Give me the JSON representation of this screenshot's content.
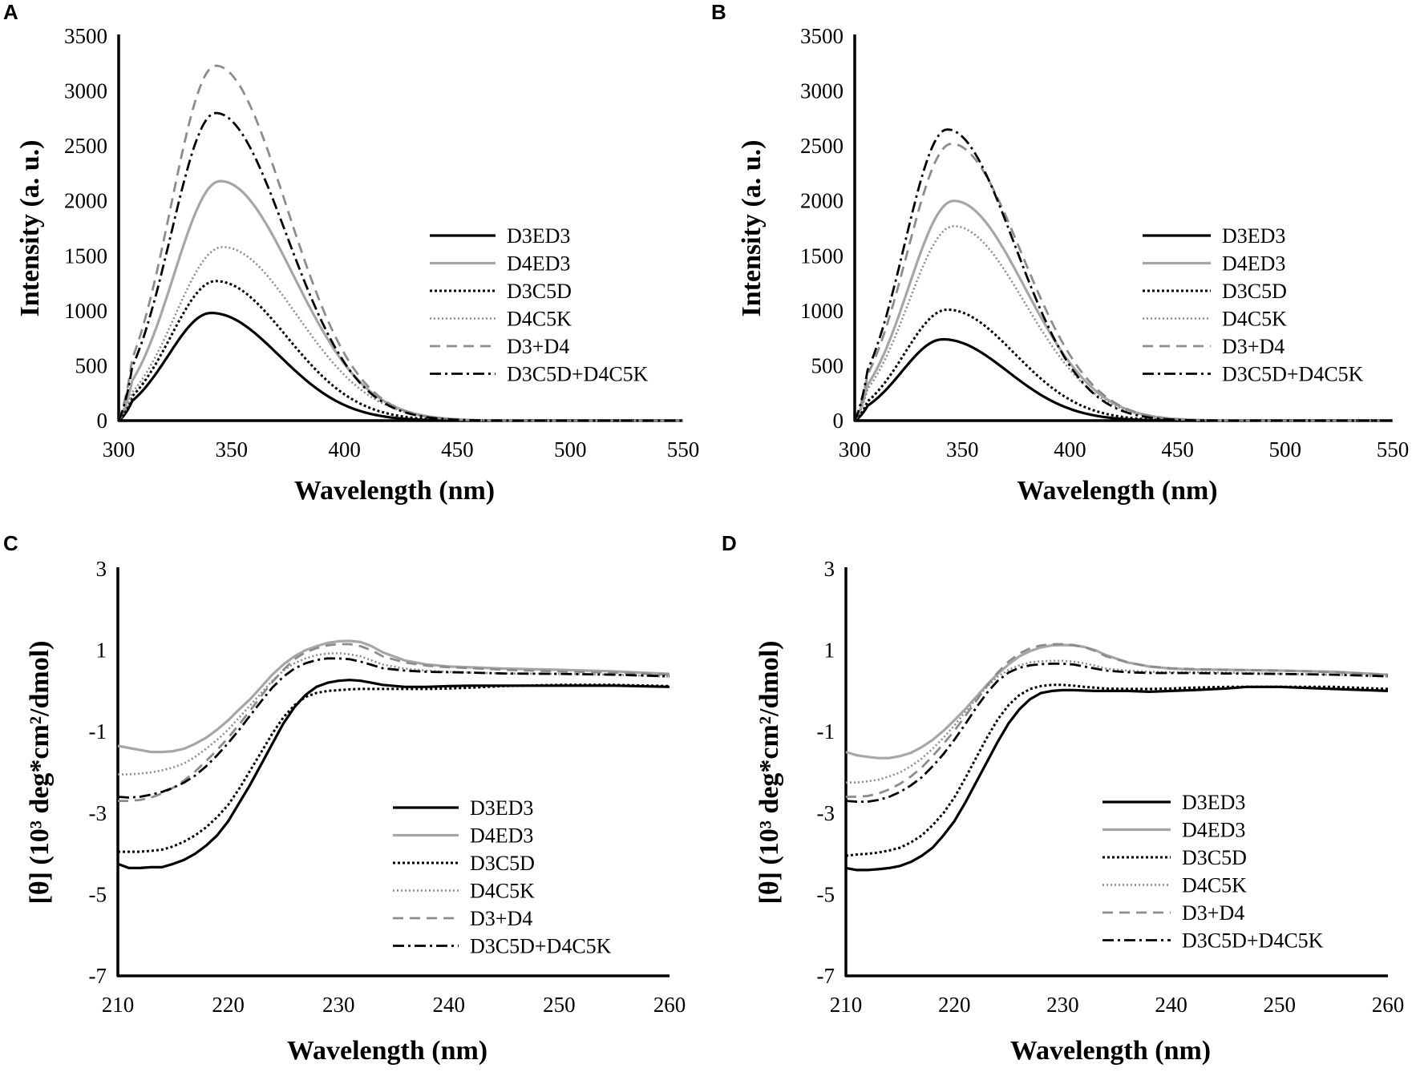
{
  "styles": {
    "D3ED3": {
      "color": "#000000",
      "dash": "",
      "width": 3.2
    },
    "D4ED3": {
      "color": "#a6a6a6",
      "dash": "",
      "width": 3.2
    },
    "D3C5D": {
      "color": "#000000",
      "dash": "3 3",
      "width": 3
    },
    "D4C5K": {
      "color": "#8c8c8c",
      "dash": "2 3",
      "width": 2.6
    },
    "D3+D4": {
      "color": "#8c8c8c",
      "dash": "13 8",
      "width": 2.8
    },
    "D3C5D+D4C5K": {
      "color": "#000000",
      "dash": "14 5 3 5",
      "width": 2.8
    }
  },
  "chart_data": [
    {
      "panel": "A",
      "type": "line",
      "kind": "fluor",
      "xlabel": "Wavelength (nm)",
      "ylabel": "Intensity (a. u.)",
      "xlim": [
        300,
        550
      ],
      "ylim": [
        0,
        3500
      ],
      "xticks": [
        300,
        350,
        400,
        450,
        500,
        550
      ],
      "yticks": [
        0,
        500,
        1000,
        1500,
        2000,
        2500,
        3000,
        3500
      ],
      "series": [
        {
          "name": "D3ED3",
          "peak_nm": 341,
          "peak_intensity": 980
        },
        {
          "name": "D4ED3",
          "peak_nm": 345,
          "peak_intensity": 2180
        },
        {
          "name": "D3C5D",
          "peak_nm": 343,
          "peak_intensity": 1270
        },
        {
          "name": "D4C5K",
          "peak_nm": 346,
          "peak_intensity": 1580
        },
        {
          "name": "D3+D4",
          "peak_nm": 343,
          "peak_intensity": 3230
        },
        {
          "name": "D3C5D+D4C5K",
          "peak_nm": 343,
          "peak_intensity": 2800
        }
      ]
    },
    {
      "panel": "B",
      "type": "line",
      "kind": "fluor",
      "xlabel": "Wavelength (nm)",
      "ylabel": "Intensity (a. u.)",
      "xlim": [
        300,
        550
      ],
      "ylim": [
        0,
        3500
      ],
      "xticks": [
        300,
        350,
        400,
        450,
        500,
        550
      ],
      "yticks": [
        0,
        500,
        1000,
        1500,
        2000,
        2500,
        3000,
        3500
      ],
      "series": [
        {
          "name": "D3ED3",
          "peak_nm": 341,
          "peak_intensity": 740
        },
        {
          "name": "D4ED3",
          "peak_nm": 346,
          "peak_intensity": 2000
        },
        {
          "name": "D3C5D",
          "peak_nm": 343,
          "peak_intensity": 1010
        },
        {
          "name": "D4C5K",
          "peak_nm": 346,
          "peak_intensity": 1770
        },
        {
          "name": "D3+D4",
          "peak_nm": 345,
          "peak_intensity": 2520
        },
        {
          "name": "D3C5D+D4C5K",
          "peak_nm": 343,
          "peak_intensity": 2650
        }
      ]
    },
    {
      "panel": "C",
      "type": "line",
      "kind": "cd",
      "xlabel": "Wavelength (nm)",
      "ylabel": "[θ] (10³ deg*cm²/dmol)",
      "xlim": [
        210,
        260
      ],
      "ylim": [
        -7,
        3
      ],
      "xticks": [
        210,
        220,
        230,
        240,
        250,
        260
      ],
      "yticks": [
        -7,
        -5,
        -3,
        -1,
        1,
        3
      ],
      "series": [
        {
          "name": "D3ED3",
          "x": [
            210,
            211,
            212,
            213,
            214,
            215,
            216,
            217,
            218,
            219,
            220,
            221,
            222,
            223,
            224,
            225,
            226,
            227,
            228,
            229,
            230,
            231,
            232,
            233,
            234,
            236,
            238,
            240,
            242,
            245,
            250,
            255,
            260
          ],
          "y": [
            -4.25,
            -4.35,
            -4.35,
            -4.33,
            -4.33,
            -4.25,
            -4.15,
            -4.0,
            -3.8,
            -3.55,
            -3.2,
            -2.75,
            -2.3,
            -1.8,
            -1.3,
            -0.8,
            -0.4,
            -0.1,
            0.1,
            0.2,
            0.25,
            0.27,
            0.25,
            0.2,
            0.15,
            0.1,
            0.1,
            0.12,
            0.13,
            0.13,
            0.13,
            0.13,
            0.1
          ]
        },
        {
          "name": "D4ED3",
          "x": [
            210,
            211,
            212,
            213,
            214,
            215,
            216,
            217,
            218,
            219,
            220,
            221,
            222,
            223,
            224,
            225,
            226,
            227,
            228,
            229,
            230,
            231,
            232,
            233,
            234,
            236,
            238,
            240,
            242,
            245,
            250,
            255,
            260
          ],
          "y": [
            -1.35,
            -1.4,
            -1.45,
            -1.5,
            -1.5,
            -1.48,
            -1.42,
            -1.3,
            -1.15,
            -0.95,
            -0.72,
            -0.45,
            -0.2,
            0.1,
            0.4,
            0.65,
            0.85,
            1.0,
            1.1,
            1.18,
            1.22,
            1.23,
            1.2,
            1.1,
            0.95,
            0.75,
            0.65,
            0.6,
            0.58,
            0.55,
            0.52,
            0.48,
            0.42
          ]
        },
        {
          "name": "D3C5D",
          "x": [
            210,
            211,
            212,
            213,
            214,
            215,
            216,
            217,
            218,
            219,
            220,
            221,
            222,
            223,
            224,
            225,
            226,
            227,
            228,
            229,
            230,
            231,
            232,
            233,
            234,
            236,
            238,
            240,
            242,
            245,
            250,
            255,
            260
          ],
          "y": [
            -3.95,
            -3.95,
            -3.95,
            -3.93,
            -3.9,
            -3.82,
            -3.7,
            -3.55,
            -3.35,
            -3.1,
            -2.8,
            -2.4,
            -1.95,
            -1.5,
            -1.05,
            -0.65,
            -0.35,
            -0.15,
            -0.05,
            0.0,
            0.02,
            0.04,
            0.05,
            0.05,
            0.05,
            0.05,
            0.05,
            0.06,
            0.08,
            0.12,
            0.15,
            0.15,
            0.12
          ]
        },
        {
          "name": "D4C5K",
          "x": [
            210,
            211,
            212,
            213,
            214,
            215,
            216,
            217,
            218,
            219,
            220,
            221,
            222,
            223,
            224,
            225,
            226,
            227,
            228,
            229,
            230,
            231,
            232,
            233,
            234,
            236,
            238,
            240,
            242,
            245,
            250,
            255,
            260
          ],
          "y": [
            -2.05,
            -2.05,
            -2.03,
            -2.0,
            -1.95,
            -1.88,
            -1.78,
            -1.62,
            -1.42,
            -1.2,
            -0.95,
            -0.65,
            -0.35,
            -0.05,
            0.25,
            0.5,
            0.68,
            0.8,
            0.88,
            0.92,
            0.93,
            0.9,
            0.85,
            0.75,
            0.65,
            0.55,
            0.5,
            0.47,
            0.45,
            0.43,
            0.42,
            0.4,
            0.35
          ]
        },
        {
          "name": "D3+D4",
          "x": [
            210,
            211,
            212,
            213,
            214,
            215,
            216,
            217,
            218,
            219,
            220,
            221,
            222,
            223,
            224,
            225,
            226,
            227,
            228,
            229,
            230,
            231,
            232,
            233,
            234,
            236,
            238,
            240,
            242,
            245,
            250,
            255,
            260
          ],
          "y": [
            -2.7,
            -2.7,
            -2.68,
            -2.62,
            -2.52,
            -2.38,
            -2.2,
            -1.98,
            -1.72,
            -1.45,
            -1.15,
            -0.82,
            -0.48,
            -0.12,
            0.22,
            0.52,
            0.78,
            0.95,
            1.05,
            1.12,
            1.15,
            1.15,
            1.1,
            1.0,
            0.85,
            0.7,
            0.62,
            0.58,
            0.56,
            0.52,
            0.48,
            0.45,
            0.4
          ]
        },
        {
          "name": "D3C5D+D4C5K",
          "x": [
            210,
            211,
            212,
            213,
            214,
            215,
            216,
            217,
            218,
            219,
            220,
            221,
            222,
            223,
            224,
            225,
            226,
            227,
            228,
            229,
            230,
            231,
            232,
            233,
            234,
            236,
            238,
            240,
            242,
            245,
            250,
            255,
            260
          ],
          "y": [
            -2.6,
            -2.62,
            -2.6,
            -2.55,
            -2.48,
            -2.38,
            -2.25,
            -2.08,
            -1.85,
            -1.58,
            -1.28,
            -0.95,
            -0.6,
            -0.25,
            0.08,
            0.35,
            0.55,
            0.68,
            0.76,
            0.8,
            0.8,
            0.78,
            0.72,
            0.64,
            0.56,
            0.5,
            0.47,
            0.46,
            0.45,
            0.43,
            0.42,
            0.4,
            0.36
          ]
        }
      ]
    },
    {
      "panel": "D",
      "type": "line",
      "kind": "cd",
      "xlabel": "Wavelength (nm)",
      "ylabel": "[θ] (10³ deg*cm²/dmol)",
      "xlim": [
        210,
        260
      ],
      "ylim": [
        -7,
        3
      ],
      "xticks": [
        210,
        220,
        230,
        240,
        250,
        260
      ],
      "yticks": [
        -7,
        -5,
        -3,
        -1,
        1,
        3
      ],
      "series": [
        {
          "name": "D3ED3",
          "x": [
            210,
            211,
            212,
            213,
            214,
            215,
            216,
            217,
            218,
            219,
            220,
            221,
            222,
            223,
            224,
            225,
            226,
            227,
            228,
            229,
            230,
            231,
            232,
            233,
            234,
            236,
            238,
            240,
            242,
            245,
            247,
            250,
            255,
            260
          ],
          "y": [
            -4.35,
            -4.4,
            -4.4,
            -4.38,
            -4.35,
            -4.3,
            -4.2,
            -4.05,
            -3.85,
            -3.55,
            -3.2,
            -2.75,
            -2.25,
            -1.75,
            -1.25,
            -0.8,
            -0.45,
            -0.2,
            -0.05,
            0.0,
            0.02,
            0.02,
            0.01,
            0.0,
            0.0,
            0.0,
            -0.02,
            0.0,
            0.02,
            0.06,
            0.1,
            0.1,
            0.05,
            0.0
          ]
        },
        {
          "name": "D4ED3",
          "x": [
            210,
            211,
            212,
            213,
            214,
            215,
            216,
            217,
            218,
            219,
            220,
            221,
            222,
            223,
            224,
            225,
            226,
            227,
            228,
            229,
            230,
            231,
            232,
            233,
            234,
            236,
            238,
            240,
            242,
            245,
            250,
            255,
            260
          ],
          "y": [
            -1.5,
            -1.58,
            -1.62,
            -1.65,
            -1.65,
            -1.6,
            -1.52,
            -1.38,
            -1.2,
            -0.98,
            -0.72,
            -0.45,
            -0.15,
            0.15,
            0.42,
            0.65,
            0.85,
            0.98,
            1.07,
            1.12,
            1.13,
            1.12,
            1.08,
            1.0,
            0.88,
            0.7,
            0.6,
            0.55,
            0.53,
            0.52,
            0.5,
            0.47,
            0.4
          ]
        },
        {
          "name": "D3C5D",
          "x": [
            210,
            211,
            212,
            213,
            214,
            215,
            216,
            217,
            218,
            219,
            220,
            221,
            222,
            223,
            224,
            225,
            226,
            227,
            228,
            229,
            230,
            231,
            232,
            233,
            234,
            236,
            238,
            240,
            242,
            245,
            250,
            255,
            260
          ],
          "y": [
            -4.05,
            -4.02,
            -4.0,
            -3.97,
            -3.92,
            -3.85,
            -3.72,
            -3.55,
            -3.3,
            -3.0,
            -2.62,
            -2.15,
            -1.65,
            -1.15,
            -0.7,
            -0.35,
            -0.1,
            0.05,
            0.12,
            0.15,
            0.15,
            0.13,
            0.1,
            0.08,
            0.06,
            0.05,
            0.05,
            0.06,
            0.08,
            0.1,
            0.1,
            0.1,
            0.05
          ]
        },
        {
          "name": "D4C5K",
          "x": [
            210,
            211,
            212,
            213,
            214,
            215,
            216,
            217,
            218,
            219,
            220,
            221,
            222,
            223,
            224,
            225,
            226,
            227,
            228,
            229,
            230,
            231,
            232,
            233,
            234,
            236,
            238,
            240,
            242,
            245,
            250,
            255,
            260
          ],
          "y": [
            -2.25,
            -2.25,
            -2.22,
            -2.18,
            -2.1,
            -2.0,
            -1.85,
            -1.66,
            -1.42,
            -1.15,
            -0.85,
            -0.52,
            -0.2,
            0.1,
            0.35,
            0.52,
            0.63,
            0.7,
            0.73,
            0.74,
            0.74,
            0.72,
            0.68,
            0.62,
            0.55,
            0.5,
            0.47,
            0.46,
            0.46,
            0.45,
            0.42,
            0.4,
            0.35
          ]
        },
        {
          "name": "D3+D4",
          "x": [
            210,
            211,
            212,
            213,
            214,
            215,
            216,
            217,
            218,
            219,
            220,
            221,
            222,
            223,
            224,
            225,
            226,
            227,
            228,
            229,
            230,
            231,
            232,
            233,
            234,
            236,
            238,
            240,
            242,
            245,
            250,
            255,
            260
          ],
          "y": [
            -2.6,
            -2.6,
            -2.58,
            -2.52,
            -2.42,
            -2.28,
            -2.1,
            -1.88,
            -1.6,
            -1.3,
            -0.98,
            -0.62,
            -0.25,
            0.12,
            0.45,
            0.72,
            0.92,
            1.05,
            1.12,
            1.15,
            1.15,
            1.13,
            1.08,
            0.98,
            0.85,
            0.7,
            0.6,
            0.56,
            0.54,
            0.52,
            0.5,
            0.46,
            0.4
          ]
        },
        {
          "name": "D3C5D+D4C5K",
          "x": [
            210,
            211,
            212,
            213,
            214,
            215,
            216,
            217,
            218,
            219,
            220,
            221,
            222,
            223,
            224,
            225,
            226,
            227,
            228,
            229,
            230,
            231,
            232,
            233,
            234,
            236,
            238,
            240,
            242,
            245,
            250,
            255,
            260
          ],
          "y": [
            -2.7,
            -2.72,
            -2.72,
            -2.68,
            -2.6,
            -2.48,
            -2.32,
            -2.12,
            -1.85,
            -1.55,
            -1.2,
            -0.82,
            -0.42,
            -0.05,
            0.25,
            0.45,
            0.57,
            0.63,
            0.66,
            0.67,
            0.67,
            0.65,
            0.6,
            0.55,
            0.5,
            0.46,
            0.44,
            0.44,
            0.44,
            0.43,
            0.42,
            0.4,
            0.36
          ]
        }
      ]
    }
  ]
}
